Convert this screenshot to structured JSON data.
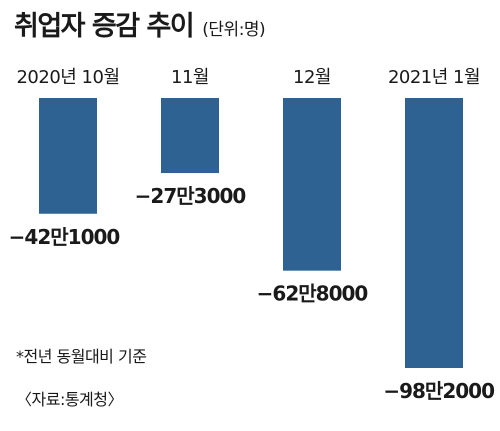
{
  "header": {
    "title": "취업자 증감 추이",
    "unit": "(단위:명)"
  },
  "chart_data": {
    "type": "bar",
    "title": "취업자 증감 추이",
    "unit": "(단위:명)",
    "categories": [
      "2020년 10월",
      "11월",
      "12월",
      "2021년 1월"
    ],
    "values": [
      -421000,
      -273000,
      -628000,
      -982000
    ],
    "value_labels": [
      "−42만1000",
      "−27만3000",
      "−62만8000",
      "−98만2000"
    ],
    "ylim": [
      -1000000,
      0
    ],
    "grid": false,
    "bar_color": "#2d6293"
  },
  "footnotes": {
    "basis": "*전년 동월대비 기준",
    "source": "〈자료:통계청〉"
  }
}
